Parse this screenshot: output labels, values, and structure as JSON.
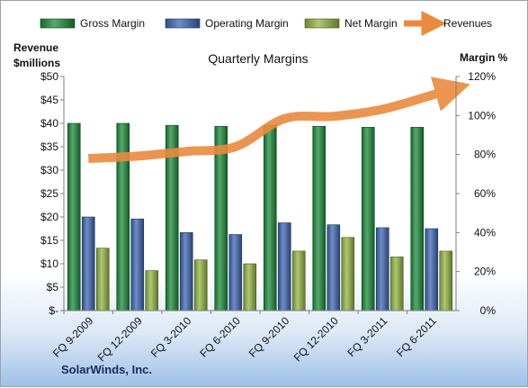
{
  "chart_data": {
    "type": "bar",
    "title": "Quarterly Margins",
    "categories": [
      "FQ 9-2009",
      "FQ 12-2009",
      "FQ 3-2010",
      "FQ 6-2010",
      "FQ 9-2010",
      "FQ 12-2010",
      "FQ 3-2011",
      "FQ 6-2011"
    ],
    "series": [
      {
        "name": "Gross Margin",
        "type": "bar",
        "axis": "right",
        "color": "#1e8c3c",
        "values": [
          96,
          96,
          95,
          94.5,
          95,
          94.5,
          94,
          94
        ]
      },
      {
        "name": "Operating Margin",
        "type": "bar",
        "axis": "right",
        "color": "#3f67b3",
        "values": [
          48,
          47,
          40,
          39,
          45,
          44,
          42.5,
          42
        ]
      },
      {
        "name": "Net Margin",
        "type": "bar",
        "axis": "right",
        "color": "#93b543",
        "values": [
          32,
          20.5,
          26,
          24,
          30.5,
          37.5,
          27.5,
          30.5
        ]
      },
      {
        "name": "Revenues",
        "type": "line",
        "axis": "left",
        "color": "#ea8a3e",
        "values": [
          32.5,
          33,
          34,
          35,
          41,
          41.5,
          43,
          46
        ]
      }
    ],
    "yaxis_left": {
      "title_line1": "Revenue",
      "title_line2": "$millions",
      "range": [
        0,
        50
      ],
      "ticks": [
        0,
        5,
        10,
        15,
        20,
        25,
        30,
        35,
        40,
        45,
        50
      ],
      "tick_labels": [
        "$-",
        "$5",
        "$10",
        "$15",
        "$20",
        "$25",
        "$30",
        "$35",
        "$40",
        "$45",
        "$50"
      ]
    },
    "yaxis_right": {
      "title": "Margin %",
      "range": [
        0,
        120
      ],
      "ticks": [
        0,
        20,
        40,
        60,
        80,
        100,
        120
      ],
      "tick_labels": [
        "0%",
        "20%",
        "40%",
        "60%",
        "80%",
        "100%",
        "120%"
      ]
    },
    "legend": {
      "placement": "top"
    },
    "gridlines": false,
    "footer": "SolarWinds, Inc."
  }
}
